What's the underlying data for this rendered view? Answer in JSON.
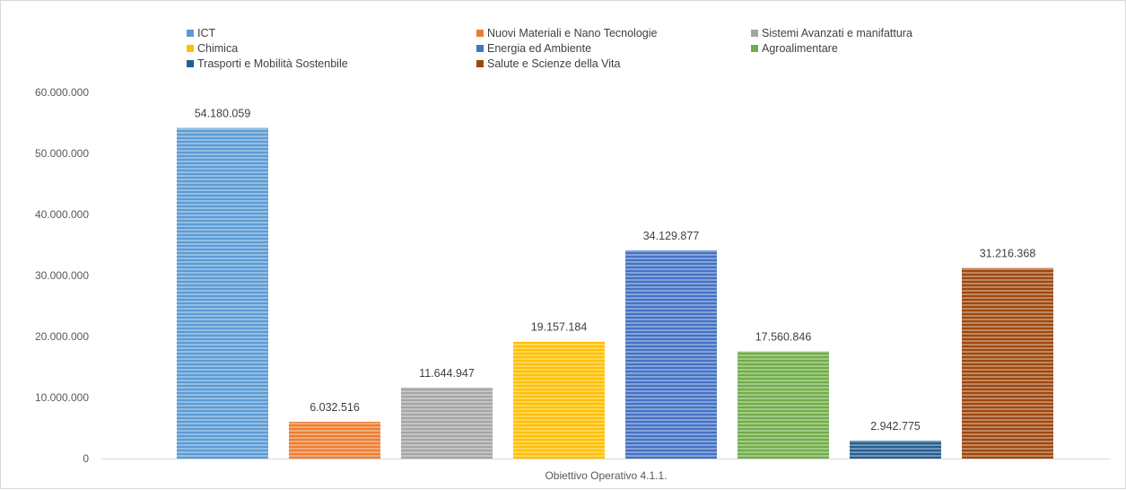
{
  "chart_data": {
    "type": "bar",
    "title": "",
    "xlabel": "",
    "ylabel": "",
    "categories": [
      "Obiettivo Operativo 4.1.1."
    ],
    "ylim": [
      0,
      60000000
    ],
    "y_ticks": [
      0,
      10000000,
      20000000,
      30000000,
      40000000,
      50000000,
      60000000
    ],
    "y_tick_labels": [
      "0",
      "10.000.000",
      "20.000.000",
      "30.000.000",
      "40.000.000",
      "50.000.000",
      "60.000.000"
    ],
    "grid": false,
    "legend_position": "top",
    "series": [
      {
        "name": "ICT",
        "value": 54180059,
        "label": "54.180.059",
        "color": "#5b9bd5"
      },
      {
        "name": "Nuovi Materiali e Nano Tecnologie",
        "value": 6032516,
        "label": "6.032.516",
        "color": "#ed7d31"
      },
      {
        "name": "Sistemi Avanzati e manifattura",
        "value": 11644947,
        "label": "11.644.947",
        "color": "#a5a5a5"
      },
      {
        "name": "Chimica",
        "value": 19157184,
        "label": "19.157.184",
        "color": "#ffc000"
      },
      {
        "name": "Energia ed Ambiente",
        "value": 34129877,
        "label": "34.129.877",
        "color": "#4472c4"
      },
      {
        "name": "Agroalimentare",
        "value": 17560846,
        "label": "17.560.846",
        "color": "#70ad47"
      },
      {
        "name": "Trasporti e Mobilità Sostenbile",
        "value": 2942775,
        "label": "2.942.775",
        "color": "#255e91"
      },
      {
        "name": "Salute e Scienze della Vita",
        "value": 31216368,
        "label": "31.216.368",
        "color": "#9e480e"
      }
    ]
  }
}
